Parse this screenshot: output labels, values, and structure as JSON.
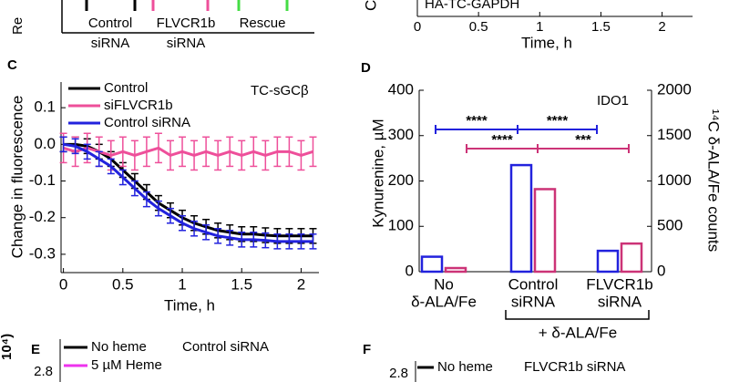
{
  "top_left": {
    "y_label": "Re",
    "labels": [
      "Control",
      "siRNA",
      "FLVCR1b",
      "siRNA",
      "Rescue"
    ]
  },
  "top_right": {
    "y_label": "C",
    "annotation": "HA-TC-GAPDH",
    "x_label": "Time, h",
    "xlim": [
      0,
      2.1
    ],
    "xticks": [
      0,
      0.5,
      1,
      1.5,
      2
    ]
  },
  "chart_data": [
    {
      "type": "line",
      "panel": "C",
      "annotation": "TC-sGCβ",
      "x_label": "Time, h",
      "y_label": "Change in fluorescence",
      "x": [
        0,
        0.1,
        0.2,
        0.3,
        0.4,
        0.5,
        0.6,
        0.7,
        0.8,
        0.9,
        1.0,
        1.1,
        1.2,
        1.3,
        1.4,
        1.5,
        1.6,
        1.7,
        1.8,
        1.9,
        2.0,
        2.1
      ],
      "xlim": [
        -0.02,
        2.15
      ],
      "xticks": [
        0,
        0.5,
        1,
        1.5,
        2
      ],
      "ylim": [
        -0.35,
        0.17
      ],
      "yticks": [
        0.1,
        {
          "value": 0,
          "label": "0.0"
        },
        -0.1,
        -0.2,
        -0.3
      ],
      "legend": "upper left",
      "series": [
        {
          "name": "Control",
          "color": "#000000",
          "values": [
            0,
            0,
            -0.005,
            -0.02,
            -0.04,
            -0.07,
            -0.1,
            -0.13,
            -0.16,
            -0.18,
            -0.2,
            -0.215,
            -0.225,
            -0.235,
            -0.24,
            -0.245,
            -0.245,
            -0.248,
            -0.25,
            -0.25,
            -0.25,
            -0.25
          ],
          "errors": [
            0.02,
            0.02,
            0.02,
            0.02,
            0.02,
            0.02,
            0.02,
            0.02,
            0.02,
            0.02,
            0.02,
            0.02,
            0.02,
            0.02,
            0.02,
            0.02,
            0.02,
            0.02,
            0.02,
            0.02,
            0.02,
            0.02
          ]
        },
        {
          "name": "siFLVCR1b",
          "color": "#ee4f9a",
          "values": [
            -0.01,
            -0.02,
            -0.01,
            -0.02,
            -0.03,
            -0.02,
            -0.03,
            -0.02,
            -0.01,
            -0.03,
            -0.02,
            -0.03,
            -0.02,
            -0.03,
            -0.02,
            -0.03,
            -0.02,
            -0.03,
            -0.02,
            -0.02,
            -0.03,
            -0.02
          ],
          "errors": [
            0.04,
            0.04,
            0.04,
            0.04,
            0.04,
            0.04,
            0.04,
            0.04,
            0.04,
            0.04,
            0.04,
            0.04,
            0.04,
            0.04,
            0.04,
            0.04,
            0.04,
            0.04,
            0.04,
            0.04,
            0.04,
            0.04
          ]
        },
        {
          "name": "Control siRNA",
          "color": "#2222dd",
          "values": [
            0,
            -0.005,
            -0.02,
            -0.04,
            -0.06,
            -0.09,
            -0.12,
            -0.15,
            -0.175,
            -0.195,
            -0.215,
            -0.23,
            -0.24,
            -0.25,
            -0.255,
            -0.26,
            -0.26,
            -0.262,
            -0.265,
            -0.265,
            -0.265,
            -0.265
          ],
          "errors": [
            0.02,
            0.02,
            0.02,
            0.02,
            0.02,
            0.02,
            0.02,
            0.02,
            0.02,
            0.02,
            0.02,
            0.02,
            0.02,
            0.02,
            0.02,
            0.02,
            0.02,
            0.02,
            0.02,
            0.02,
            0.02,
            0.02
          ]
        }
      ]
    },
    {
      "type": "bar",
      "panel": "D",
      "annotation": "IDO1",
      "y_label": "Kynurenine, µM",
      "y2_label": "¹⁴C δ-ALA/Fe counts",
      "categories": [
        [
          "No",
          "δ-ALA/Fe"
        ],
        [
          "Control",
          "siRNA"
        ],
        [
          "FLVCR1b",
          "siRNA"
        ]
      ],
      "ylim": [
        0,
        400
      ],
      "yticks": [
        0,
        100,
        200,
        300,
        400
      ],
      "y2lim": [
        0,
        2000
      ],
      "y2ticks": [
        0,
        500,
        1000,
        1500,
        2000
      ],
      "series": [
        {
          "color": "#2222dd",
          "values": [
            33,
            235,
            46
          ]
        },
        {
          "color": "#cc3377",
          "axis": "y2",
          "values": [
            40,
            910,
            310
          ]
        }
      ],
      "significance": [
        "****",
        "****",
        "****",
        "***"
      ],
      "bracket_label": "+ δ-ALA/Fe"
    }
  ],
  "panel_e": {
    "panel": "E",
    "y_unit": "10⁴)",
    "ytick": "2.8",
    "legend": [
      "No heme",
      "5 µM Heme"
    ],
    "annotation": "Control siRNA"
  },
  "panel_f": {
    "panel": "F",
    "ytick": "2.8",
    "legend": [
      "No heme"
    ],
    "annotation": "FLVCR1b siRNA"
  }
}
